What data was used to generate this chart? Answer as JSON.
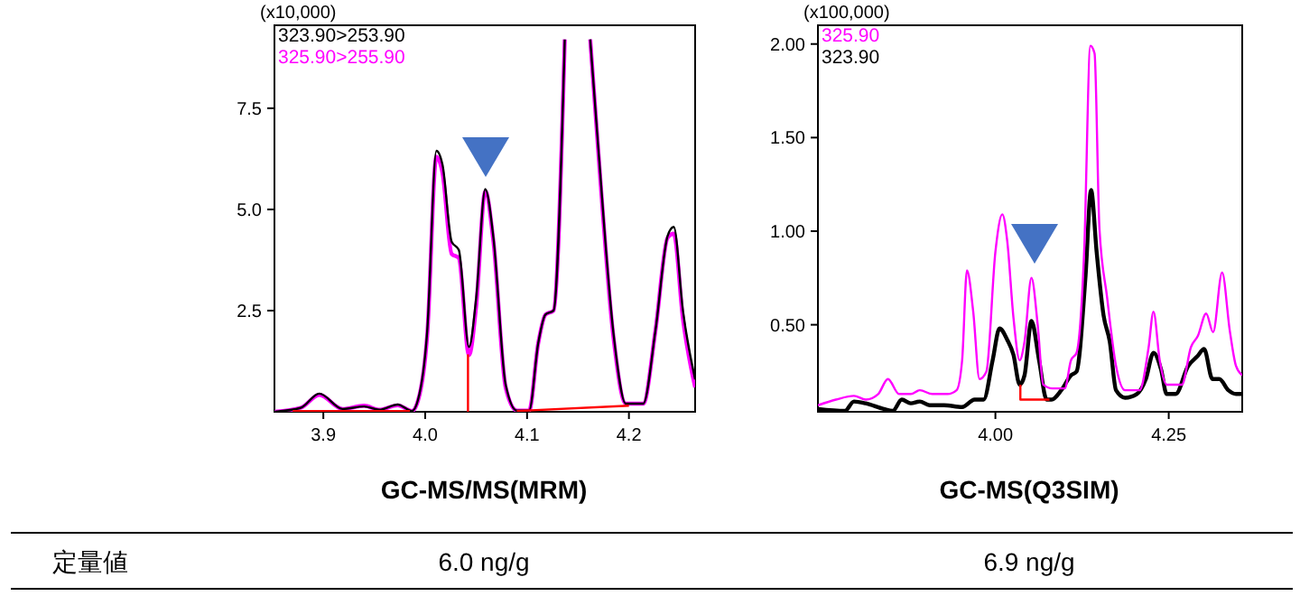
{
  "chart_data": [
    {
      "type": "line",
      "xlabel": "GC-MS/MS(MRM)",
      "ylabel": "(x10,000)",
      "xlim": [
        3.852,
        4.265
      ],
      "ylim": [
        0,
        9.55
      ],
      "xticks": [
        3.9,
        {
          "value": 4,
          "label": "4.0"
        },
        4.1,
        4.2
      ],
      "yticks": [
        2.5,
        {
          "value": 5,
          "label": "5.0"
        },
        7.5
      ],
      "legend": "top left",
      "series": [
        {
          "name": "325.90>255.90",
          "color": "#ff00ff",
          "x": [
            3.852,
            3.878,
            3.896,
            3.919,
            3.94,
            3.955,
            3.973,
            3.987,
            3.993,
            4.002,
            4.011,
            4.017,
            4.026,
            4.033,
            4.043,
            4.05,
            4.059,
            4.067,
            4.079,
            4.09,
            4.102,
            4.111,
            4.118,
            4.126,
            4.137,
            4.15,
            4.162,
            4.17,
            4.185,
            4.197,
            4.214,
            4.226,
            4.238,
            4.244,
            4.253,
            4.265
          ],
          "values": [
            0,
            0.1,
            0.42,
            0.07,
            0.15,
            0.05,
            0.16,
            0.02,
            0.28,
            1.9,
            6.3,
            5.9,
            3.9,
            3.8,
            1.4,
            2.6,
            5.45,
            4.2,
            0.6,
            0.03,
            0.03,
            1.7,
            2.4,
            2.5,
            9.2,
            null,
            9.2,
            6.4,
            1.8,
            0.2,
            0.2,
            2.0,
            4.3,
            4.4,
            2.3,
            0.6
          ]
        },
        {
          "name": "323.90>253.90",
          "color": "#000000",
          "x": [
            3.852,
            3.878,
            3.896,
            3.919,
            3.94,
            3.955,
            3.973,
            3.987,
            3.993,
            4.002,
            4.011,
            4.017,
            4.026,
            4.033,
            4.043,
            4.05,
            4.059,
            4.067,
            4.079,
            4.09,
            4.102,
            4.111,
            4.118,
            4.126,
            4.137,
            4.15,
            4.162,
            4.17,
            4.185,
            4.197,
            4.214,
            4.226,
            4.238,
            4.244,
            4.253,
            4.265
          ],
          "values": [
            0,
            0.1,
            0.45,
            0.07,
            0.13,
            0.05,
            0.18,
            0.02,
            0.3,
            2.0,
            6.45,
            6.1,
            4.2,
            4.0,
            1.6,
            2.8,
            5.5,
            4.3,
            0.67,
            0.03,
            0.03,
            1.7,
            2.4,
            2.5,
            9.2,
            null,
            9.2,
            6.5,
            1.9,
            0.2,
            0.2,
            2.0,
            4.35,
            4.57,
            2.5,
            0.8
          ]
        },
        {
          "color": "#ff0000",
          "x": [
            4.042,
            4.042
          ],
          "values": [
            0,
            1.42
          ]
        },
        {
          "color": "#ff0000",
          "x": [
            3.87,
            3.985
          ],
          "values": [
            0.02,
            0.02
          ]
        },
        {
          "color": "#ff0000",
          "x": [
            4.09,
            4.2
          ],
          "values": [
            0.02,
            0.15
          ]
        }
      ]
    },
    {
      "type": "line",
      "xlabel": "GC-MS(Q3SIM)",
      "ylabel": "(x100,000)",
      "xlim": [
        3.744,
        4.356
      ],
      "ylim": [
        0.035,
        2.1
      ],
      "xticks": [
        {
          "value": 4,
          "label": "4.00"
        },
        4.25
      ],
      "yticks": [
        {
          "value": 0.5,
          "label": "0.50"
        },
        {
          "value": 1,
          "label": "1.00"
        },
        {
          "value": 1.5,
          "label": "1.50"
        },
        {
          "value": 2,
          "label": "2.00"
        }
      ],
      "legend": "top left",
      "series": [
        {
          "name": "323.90",
          "color": "#000000",
          "x": [
            3.744,
            3.783,
            3.796,
            3.813,
            3.839,
            3.852,
            3.865,
            3.878,
            3.891,
            3.905,
            3.926,
            3.952,
            3.97,
            3.983,
            3.996,
            4.006,
            4.017,
            4.026,
            4.035,
            4.042,
            4.052,
            4.063,
            4.074,
            4.081,
            4.095,
            4.109,
            4.117,
            4.13,
            4.138,
            4.146,
            4.156,
            4.165,
            4.174,
            4.187,
            4.204,
            4.217,
            4.228,
            4.239,
            4.247,
            4.26,
            4.278,
            4.291,
            4.301,
            4.313,
            4.323,
            4.336,
            4.347,
            4.356
          ],
          "values": [
            0.05,
            0.04,
            0.09,
            0.08,
            0.05,
            0.04,
            0.1,
            0.08,
            0.09,
            0.07,
            0.07,
            0.06,
            0.1,
            0.1,
            0.31,
            0.48,
            0.42,
            0.34,
            0.18,
            0.23,
            0.52,
            0.31,
            0.1,
            0.1,
            0.15,
            0.23,
            0.25,
            0.76,
            1.22,
            0.89,
            0.55,
            0.41,
            0.15,
            0.11,
            0.13,
            0.21,
            0.35,
            0.26,
            0.13,
            0.13,
            0.28,
            0.33,
            0.37,
            0.21,
            0.21,
            0.15,
            0.13,
            0.13
          ]
        },
        {
          "name": "325.90",
          "color": "#ff00ff",
          "x": [
            3.744,
            3.77,
            3.796,
            3.813,
            3.831,
            3.845,
            3.861,
            3.878,
            3.891,
            3.909,
            3.931,
            3.944,
            3.952,
            3.959,
            3.968,
            3.977,
            3.987,
            4.0,
            4.01,
            4.017,
            4.026,
            4.035,
            4.042,
            4.052,
            4.061,
            4.069,
            4.082,
            4.1,
            4.109,
            4.117,
            4.128,
            4.137,
            4.143,
            4.15,
            4.161,
            4.174,
            4.187,
            4.208,
            4.221,
            4.228,
            4.237,
            4.247,
            4.269,
            4.282,
            4.292,
            4.304,
            4.314,
            4.327,
            4.338,
            4.347,
            4.356
          ],
          "values": [
            0.07,
            0.1,
            0.12,
            0.1,
            0.13,
            0.21,
            0.13,
            0.13,
            0.15,
            0.13,
            0.13,
            0.15,
            0.31,
            0.79,
            0.57,
            0.21,
            0.25,
            0.89,
            1.09,
            0.95,
            0.54,
            0.31,
            0.41,
            0.75,
            0.5,
            0.18,
            0.16,
            0.16,
            0.31,
            0.35,
            0.89,
            1.99,
            1.95,
            1.02,
            0.65,
            0.28,
            0.15,
            0.15,
            0.38,
            0.57,
            0.31,
            0.18,
            0.18,
            0.38,
            0.44,
            0.56,
            0.46,
            0.78,
            0.47,
            0.28,
            0.23
          ]
        },
        {
          "color": "#ff0000",
          "x": [
            4.036,
            4.036,
            4.078
          ],
          "values": [
            0.18,
            0.1,
            0.1
          ]
        }
      ]
    },
    {
      "type": "other",
      "annotations": [
        "定量値",
        "6.0 ng/g",
        "6.9 ng/g"
      ]
    }
  ]
}
